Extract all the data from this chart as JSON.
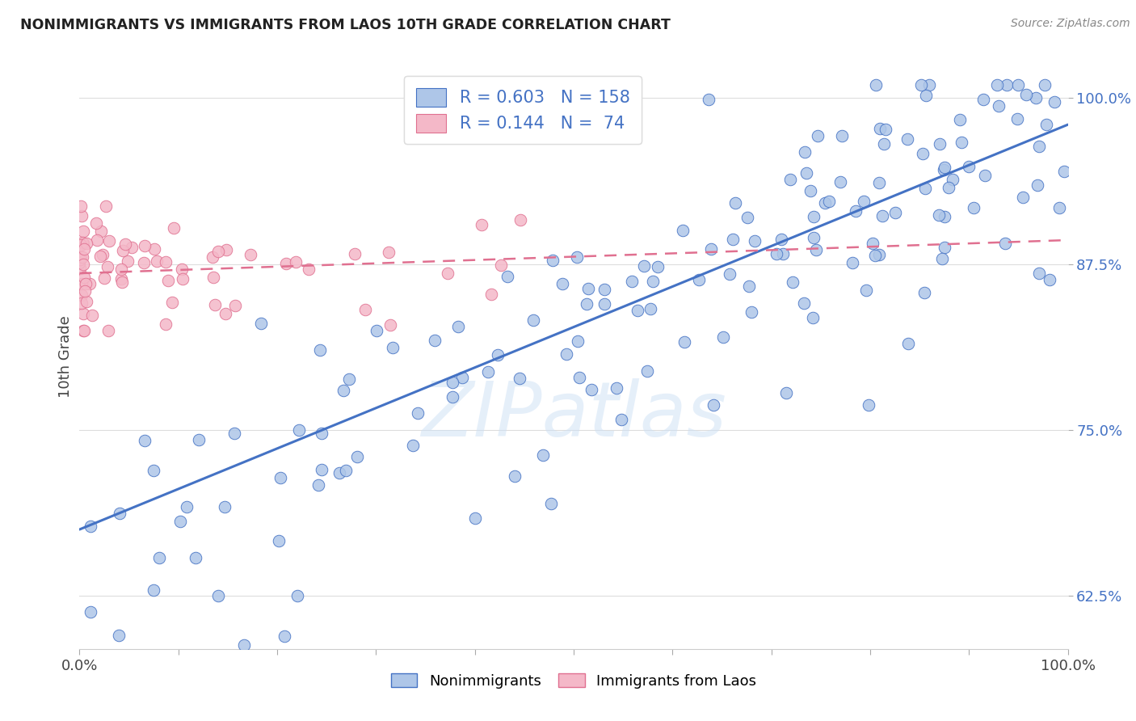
{
  "title": "NONIMMIGRANTS VS IMMIGRANTS FROM LAOS 10TH GRADE CORRELATION CHART",
  "source": "Source: ZipAtlas.com",
  "ylabel": "10th Grade",
  "y_ticks": [
    0.625,
    0.75,
    0.875,
    1.0
  ],
  "y_tick_labels": [
    "62.5%",
    "75.0%",
    "87.5%",
    "100.0%"
  ],
  "xlim": [
    0.0,
    1.0
  ],
  "ylim": [
    0.585,
    1.025
  ],
  "nonimm_R": 0.603,
  "nonimm_N": 158,
  "imm_R": 0.144,
  "imm_N": 74,
  "nonimm_color": "#aec6e8",
  "nonimm_line_color": "#4472c4",
  "imm_color": "#f4b8c8",
  "imm_line_color": "#e07090",
  "background_color": "#ffffff",
  "grid_color": "#dddddd",
  "title_color": "#222222",
  "r_n_color": "#4472c4",
  "legend_label_nonimm": "Nonimmigrants",
  "legend_label_imm": "Immigrants from Laos"
}
